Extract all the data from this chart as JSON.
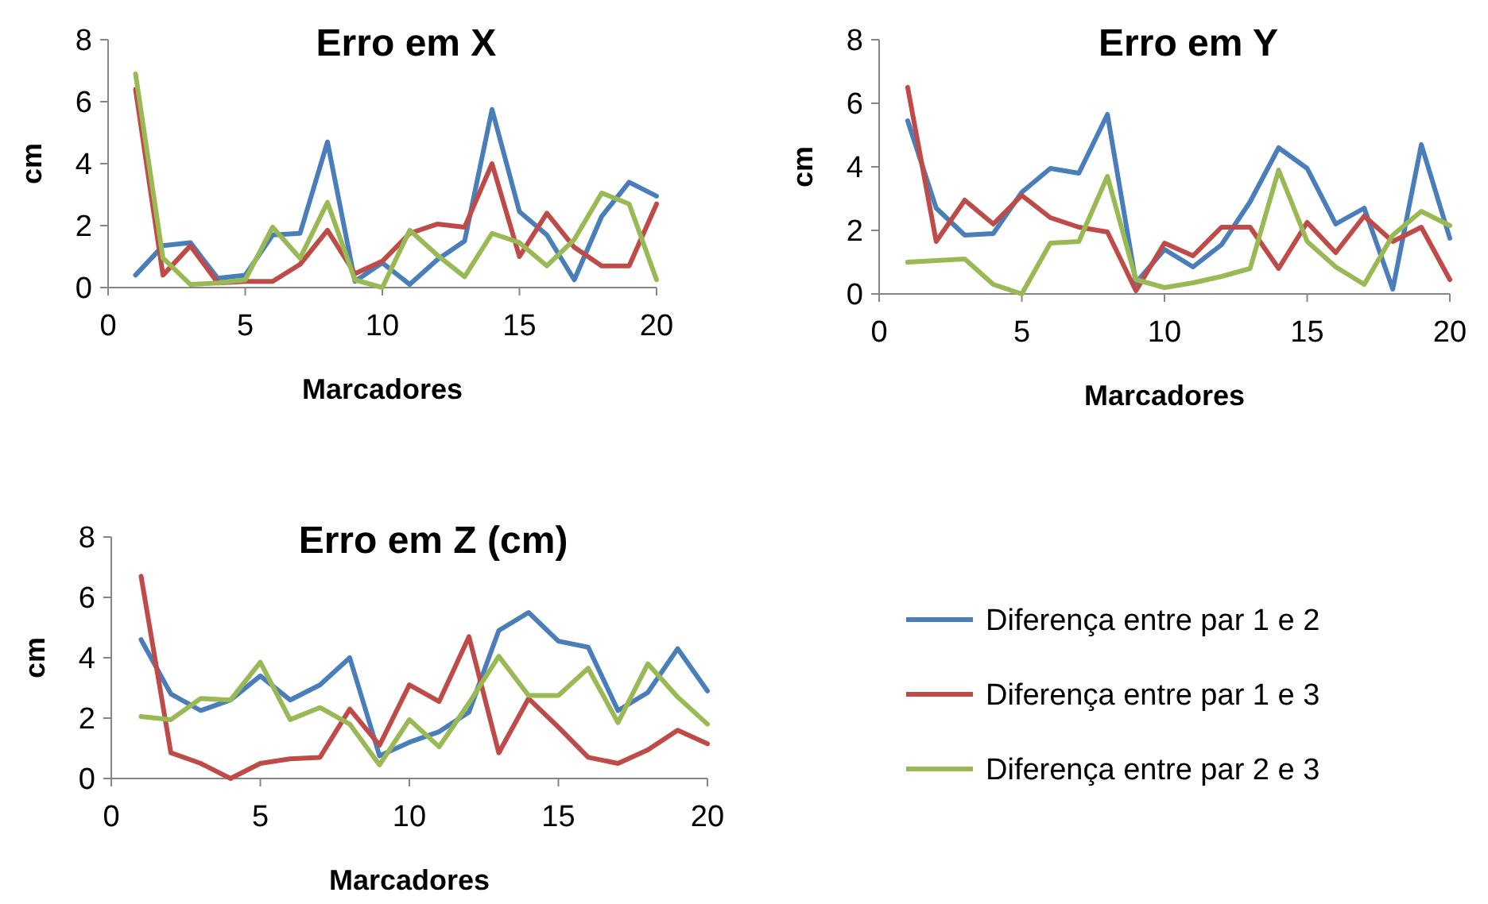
{
  "chart_data": [
    {
      "type": "line",
      "title": "Erro em X",
      "xlabel": "Marcadores",
      "ylabel": "cm",
      "x": [
        1,
        2,
        3,
        4,
        5,
        6,
        7,
        8,
        9,
        10,
        11,
        12,
        13,
        14,
        15,
        16,
        17,
        18,
        19,
        20
      ],
      "xlim": [
        0,
        20
      ],
      "xticks": [
        0,
        5,
        10,
        15,
        20
      ],
      "ylim": [
        0,
        8
      ],
      "yticks": [
        0,
        2,
        4,
        6,
        8
      ],
      "grid": false,
      "legend": false,
      "series": [
        {
          "color": "#4a7ebb",
          "values": [
            0.4,
            1.35,
            1.45,
            0.3,
            0.4,
            1.7,
            1.75,
            4.7,
            0.2,
            0.8,
            0.1,
            0.9,
            1.5,
            5.75,
            2.45,
            1.7,
            0.25,
            2.3,
            3.4,
            2.95
          ]
        },
        {
          "color": "#be4b48",
          "values": [
            6.4,
            0.4,
            1.35,
            0.15,
            0.2,
            0.2,
            0.75,
            1.85,
            0.45,
            0.85,
            1.75,
            2.05,
            1.95,
            4.0,
            1.0,
            2.4,
            1.3,
            0.7,
            0.7,
            2.7
          ]
        },
        {
          "color": "#98b954",
          "values": [
            6.9,
            0.95,
            0.1,
            0.15,
            0.25,
            1.95,
            0.95,
            2.75,
            0.25,
            0.0,
            1.85,
            1.05,
            0.35,
            1.75,
            1.45,
            0.7,
            1.55,
            3.05,
            2.7,
            0.25
          ]
        }
      ]
    },
    {
      "type": "line",
      "title": "Erro em Y",
      "xlabel": "Marcadores",
      "ylabel": "cm",
      "x": [
        1,
        2,
        3,
        4,
        5,
        6,
        7,
        8,
        9,
        10,
        11,
        12,
        13,
        14,
        15,
        16,
        17,
        18,
        19,
        20
      ],
      "xlim": [
        0,
        20
      ],
      "xticks": [
        0,
        5,
        10,
        15,
        20
      ],
      "ylim": [
        0,
        8
      ],
      "yticks": [
        0,
        2,
        4,
        6,
        8
      ],
      "grid": false,
      "legend": false,
      "series": [
        {
          "color": "#4a7ebb",
          "values": [
            5.45,
            2.7,
            1.85,
            1.9,
            3.2,
            3.95,
            3.8,
            5.65,
            0.35,
            1.4,
            0.85,
            1.55,
            2.9,
            4.6,
            3.95,
            2.2,
            2.7,
            0.15,
            4.7,
            1.75
          ]
        },
        {
          "color": "#be4b48",
          "values": [
            6.5,
            1.65,
            2.95,
            2.2,
            3.1,
            2.4,
            2.1,
            1.95,
            0.1,
            1.6,
            1.2,
            2.1,
            2.1,
            0.8,
            2.25,
            1.3,
            2.45,
            1.65,
            2.1,
            0.45
          ]
        },
        {
          "color": "#98b954",
          "values": [
            1.0,
            1.05,
            1.1,
            0.3,
            0.0,
            1.6,
            1.65,
            3.7,
            0.45,
            0.2,
            0.35,
            0.55,
            0.8,
            3.9,
            1.65,
            0.85,
            0.3,
            1.85,
            2.6,
            2.15
          ]
        }
      ]
    },
    {
      "type": "line",
      "title": "Erro em Z (cm)",
      "xlabel": "Marcadores",
      "ylabel": "cm",
      "x": [
        1,
        2,
        3,
        4,
        5,
        6,
        7,
        8,
        9,
        10,
        11,
        12,
        13,
        14,
        15,
        16,
        17,
        18,
        19,
        20
      ],
      "xlim": [
        0,
        20
      ],
      "xticks": [
        0,
        5,
        10,
        15,
        20
      ],
      "ylim": [
        0,
        8
      ],
      "yticks": [
        0,
        2,
        4,
        6,
        8
      ],
      "grid": false,
      "legend": "right",
      "series": [
        {
          "name": "Diferença entre par 1 e 2",
          "color": "#4a7ebb",
          "values": [
            4.6,
            2.8,
            2.25,
            2.6,
            3.4,
            2.6,
            3.1,
            4.0,
            0.75,
            1.2,
            1.55,
            2.2,
            4.9,
            5.5,
            4.55,
            4.35,
            2.25,
            2.85,
            4.3,
            2.9
          ]
        },
        {
          "name": "Diferença entre par 1 e 3",
          "color": "#be4b48",
          "values": [
            6.7,
            0.85,
            0.5,
            0.0,
            0.5,
            0.65,
            0.7,
            2.3,
            1.1,
            3.1,
            2.55,
            4.7,
            0.85,
            2.65,
            1.7,
            0.7,
            0.5,
            0.95,
            1.6,
            1.15
          ]
        },
        {
          "name": "Diferença entre par 2 e 3",
          "color": "#98b954",
          "values": [
            2.05,
            1.95,
            2.65,
            2.6,
            3.85,
            1.95,
            2.35,
            1.8,
            0.45,
            1.95,
            1.05,
            2.5,
            4.05,
            2.75,
            2.75,
            3.65,
            1.85,
            3.8,
            2.7,
            1.8
          ]
        }
      ]
    }
  ]
}
